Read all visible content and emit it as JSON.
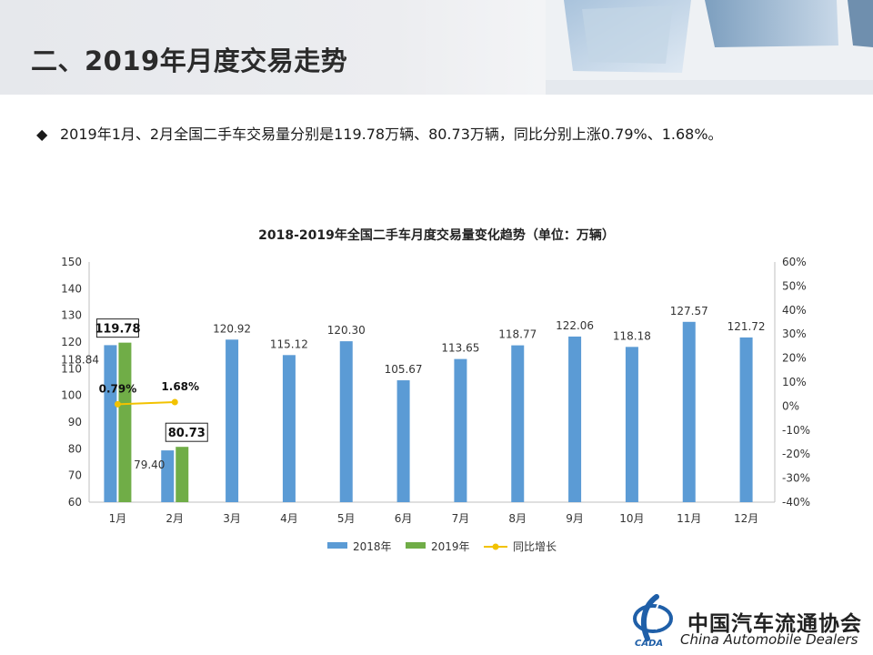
{
  "slide": {
    "title": "二、2019年月度交易走势",
    "bullet": "2019年1月、2月全国二手车交易量分别是119.78万辆、80.73万辆，同比分别上涨0.79%、1.68%。"
  },
  "icons": {
    "bullet": "diamond-bullet-icon",
    "logo": "cada-logo-icon"
  },
  "colors": {
    "s2018": "#5b9bd5",
    "s2019": "#70ad47",
    "yoy": "#f2c200",
    "axis": "#bfbfbf"
  },
  "chart_data": {
    "type": "bar",
    "title": "2018-2019年全国二手车月度交易量变化趋势（单位：万辆）",
    "categories": [
      "1月",
      "2月",
      "3月",
      "4月",
      "5月",
      "6月",
      "7月",
      "8月",
      "9月",
      "10月",
      "11月",
      "12月"
    ],
    "series": [
      {
        "name": "2018年",
        "type": "bar",
        "axis": "left",
        "values": [
          118.84,
          79.4,
          120.92,
          115.12,
          120.3,
          105.67,
          113.65,
          118.77,
          122.06,
          118.18,
          127.57,
          121.72
        ]
      },
      {
        "name": "2019年",
        "type": "bar",
        "axis": "left",
        "values": [
          119.78,
          80.73,
          null,
          null,
          null,
          null,
          null,
          null,
          null,
          null,
          null,
          null
        ]
      },
      {
        "name": "同比增长",
        "type": "line",
        "axis": "right",
        "values": [
          0.79,
          1.68,
          null,
          null,
          null,
          null,
          null,
          null,
          null,
          null,
          null,
          null
        ]
      }
    ],
    "data_labels": {
      "2018年": [
        "118.84",
        "79.40",
        "120.92",
        "115.12",
        "120.30",
        "105.67",
        "113.65",
        "118.77",
        "122.06",
        "118.18",
        "127.57",
        "121.72"
      ],
      "2019年": [
        "119.78",
        "80.73"
      ],
      "同比增长": [
        "0.79%",
        "1.68%"
      ]
    },
    "y_left": {
      "min": 60,
      "max": 150,
      "step": 10,
      "ticks": [
        "60",
        "70",
        "80",
        "90",
        "100",
        "110",
        "120",
        "130",
        "140",
        "150"
      ]
    },
    "y_right": {
      "min": -40,
      "max": 60,
      "step": 10,
      "ticks": [
        "-40%",
        "-30%",
        "-20%",
        "-10%",
        "0%",
        "10%",
        "20%",
        "30%",
        "40%",
        "50%",
        "60%"
      ]
    },
    "grid": false,
    "legend": {
      "position": "bottom",
      "items": [
        "2018年",
        "2019年",
        "同比增长"
      ]
    }
  },
  "footer": {
    "org_cn": "中国汽车流通协会",
    "org_en": "China  Automobile  Dealers",
    "logo_text": "CADA"
  }
}
